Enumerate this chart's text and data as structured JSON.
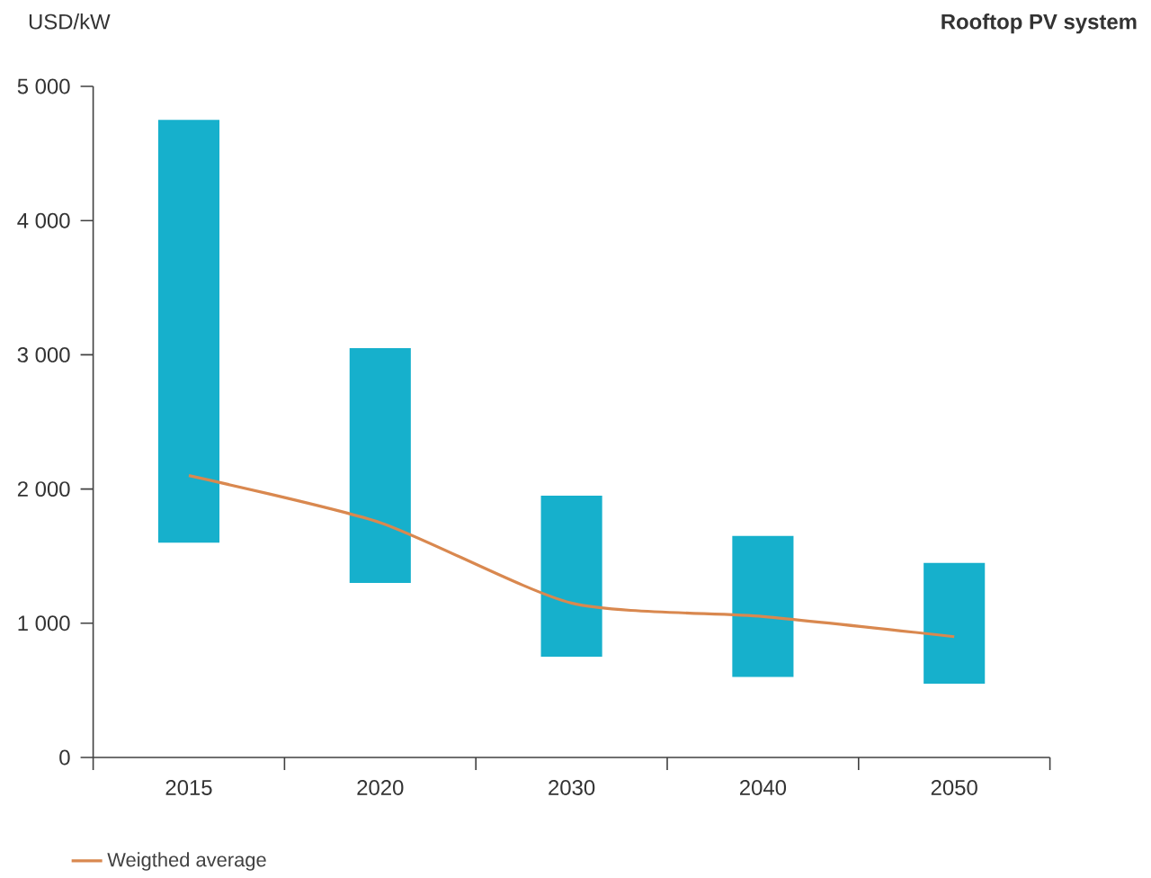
{
  "chart_data": {
    "type": "bar",
    "title": "Rooftop PV system",
    "ylabel": "USD/kW",
    "categories": [
      "2015",
      "2020",
      "2030",
      "2040",
      "2050"
    ],
    "series": [
      {
        "color": "#16b0cc",
        "base": [
          1600,
          1300,
          750,
          600,
          550
        ],
        "values": [
          3150,
          1750,
          1200,
          1050,
          900
        ]
      },
      {
        "type": "line",
        "name": "Weigthed average",
        "color": "#d9884f",
        "values": [
          2100,
          1750,
          1150,
          1050,
          900
        ]
      }
    ],
    "ylim": [
      0,
      5000
    ],
    "yticks": [
      {
        "value": 0,
        "label": "0"
      },
      {
        "value": 1000,
        "label": "1 000"
      },
      {
        "value": 2000,
        "label": "2 000"
      },
      {
        "value": 3000,
        "label": "3 000"
      },
      {
        "value": 4000,
        "label": "4 000"
      },
      {
        "value": 5000,
        "label": "5 000"
      }
    ],
    "grid": false,
    "legend": "bottom left",
    "marker": "none",
    "line_style": "solid"
  }
}
